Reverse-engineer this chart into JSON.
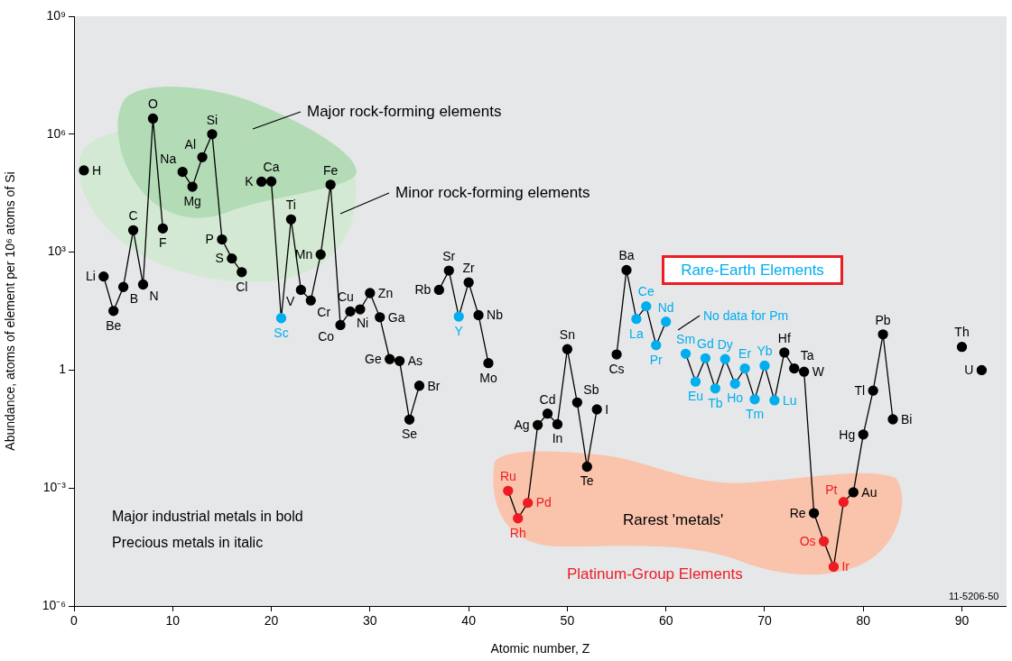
{
  "chart_data": {
    "type": "line",
    "xlabel": "Atomic number, Z",
    "ylabel": "Abundance, atoms of element per 10⁶ atoms of Si",
    "xlim": [
      0,
      94.5
    ],
    "xticks": [
      0,
      10,
      20,
      30,
      40,
      50,
      60,
      70,
      80,
      90
    ],
    "ylim": [
      1e-06,
      1000000000
    ],
    "yticks": [
      {
        "value": 1e-06,
        "label": "10⁻⁶"
      },
      {
        "value": 0.001,
        "label": "10⁻³"
      },
      1,
      {
        "value": 1000,
        "label": "10³"
      },
      {
        "value": 1000000,
        "label": "10⁶"
      },
      {
        "value": 1000000000,
        "label": "10⁹"
      }
    ],
    "log": "y",
    "grid": false,
    "legend": false,
    "marker": "circle",
    "line_style": "solid",
    "series": [
      {
        "color": "#000000",
        "x": [
          1,
          2,
          3,
          4,
          5,
          6,
          7,
          8,
          9,
          10,
          11,
          12,
          13,
          14,
          15,
          16,
          17,
          18,
          19,
          20,
          21,
          22,
          23,
          24,
          25,
          26,
          27,
          28,
          29,
          30,
          31,
          32,
          33,
          34,
          35,
          36,
          37,
          38,
          39,
          40,
          41,
          42,
          43,
          44,
          45,
          46,
          47,
          48,
          49,
          50,
          51,
          52,
          53,
          54,
          55,
          56,
          57,
          58,
          59,
          60,
          61,
          62,
          63,
          64,
          65,
          66,
          67,
          68,
          69,
          70,
          71,
          72,
          73,
          74,
          75,
          76,
          77,
          78,
          79,
          80,
          81,
          82,
          83,
          84,
          90,
          91,
          92
        ],
        "values": [
          120000,
          null,
          240,
          32,
          130,
          3600,
          150,
          2500000,
          4000,
          null,
          110000,
          46000,
          260000,
          1000000,
          2100,
          690,
          310,
          null,
          62000,
          63000,
          21,
          6800,
          110,
          59,
          870,
          52000,
          14,
          31,
          35,
          91,
          22,
          1.9,
          1.7,
          0.055,
          0.4,
          null,
          110,
          340,
          23,
          170,
          25,
          1.5,
          null,
          0.00085,
          0.00017,
          0.00042,
          0.04,
          0.078,
          0.042,
          3.4,
          0.15,
          0.0035,
          0.1,
          null,
          2.5,
          350,
          20,
          42,
          4.3,
          17,
          null,
          2.6,
          0.51,
          2,
          0.34,
          1.9,
          0.45,
          1.1,
          0.18,
          1.3,
          0.17,
          2.8,
          1.1,
          0.91,
          0.00023,
          4.4e-05,
          1e-05,
          0.00044,
          0.00078,
          0.023,
          0.3,
          8.1,
          0.056,
          null,
          3.9,
          null,
          1
        ],
        "value_labels": [
          "H",
          null,
          "Li",
          "Be",
          "B",
          "C",
          "N",
          "O",
          "F",
          null,
          "Na",
          "Mg",
          "Al",
          "Si",
          "P",
          "S",
          "Cl",
          null,
          "K",
          "Ca",
          "Sc",
          "Ti",
          "V",
          "Cr",
          "Mn",
          "Fe",
          "Co",
          "Ni",
          "Cu",
          "Zn",
          "Ga",
          "Ge",
          "As",
          "Se",
          "Br",
          null,
          "Rb",
          "Sr",
          "Y",
          "Zr",
          "Nb",
          "Mo",
          null,
          "Ru",
          "Rh",
          "Pd",
          "Ag",
          "Cd",
          "In",
          "Sn",
          "Sb",
          "Te",
          "I",
          null,
          "Cs",
          "Ba",
          "La",
          "Ce",
          "Pr",
          "Nd",
          null,
          "Sm",
          "Eu",
          "Gd",
          "Tb",
          "Dy",
          "Ho",
          "Er",
          "Tm",
          "Yb",
          "Lu",
          "Hf",
          "Ta",
          "W",
          "Re",
          "Os",
          "Ir",
          "Pt",
          "Au",
          "Hg",
          "Tl",
          "Pb",
          "Bi",
          null,
          "Th",
          null,
          "U"
        ],
        "colors": [
          "#000000",
          null,
          "#000000",
          "#000000",
          "#000000",
          "#000000",
          "#000000",
          "#000000",
          "#000000",
          null,
          "#000000",
          "#000000",
          "#000000",
          "#000000",
          "#000000",
          "#000000",
          "#000000",
          null,
          "#000000",
          "#000000",
          "#00aeef",
          "#000000",
          "#000000",
          "#000000",
          "#000000",
          "#000000",
          "#000000",
          "#000000",
          "#000000",
          "#000000",
          "#000000",
          "#000000",
          "#000000",
          "#000000",
          "#000000",
          null,
          "#000000",
          "#000000",
          "#00aeef",
          "#000000",
          "#000000",
          "#000000",
          null,
          "#ed1c24",
          "#ed1c24",
          "#ed1c24",
          "#000000",
          "#000000",
          "#000000",
          "#000000",
          "#000000",
          "#000000",
          "#000000",
          null,
          "#000000",
          "#000000",
          "#00aeef",
          "#00aeef",
          "#00aeef",
          "#00aeef",
          null,
          "#00aeef",
          "#00aeef",
          "#00aeef",
          "#00aeef",
          "#00aeef",
          "#00aeef",
          "#00aeef",
          "#00aeef",
          "#00aeef",
          "#00aeef",
          "#000000",
          "#000000",
          "#000000",
          "#000000",
          "#ed1c24",
          "#ed1c24",
          "#ed1c24",
          "#000000",
          "#000000",
          "#000000",
          "#000000",
          "#000000",
          null,
          "#000000",
          null,
          "#000000"
        ]
      }
    ],
    "annotations": [
      "Major rock-forming elements",
      "Minor rock-forming elements",
      "Rare-Earth Elements",
      "No data for Pm",
      "Rarest 'metals'",
      "Platinum-Group Elements",
      "Major industrial metals in bold",
      "Precious metals in italic",
      "11-5206-50"
    ]
  }
}
